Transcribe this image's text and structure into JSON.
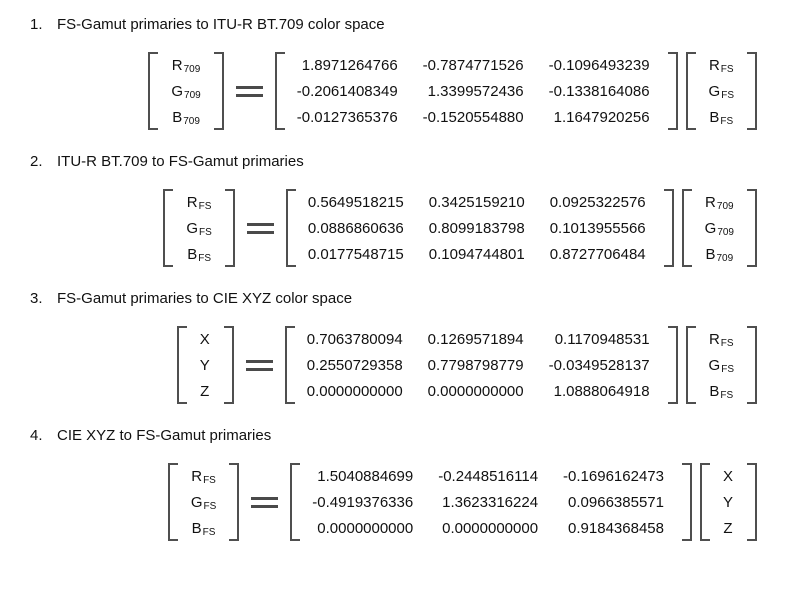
{
  "sections": [
    {
      "number": "1.",
      "title": "FS-Gamut primaries to ITU-R BT.709 color space",
      "lhs": [
        {
          "base": "R",
          "sub": "709"
        },
        {
          "base": "G",
          "sub": "709"
        },
        {
          "base": "B",
          "sub": "709"
        }
      ],
      "matrix": [
        [
          "1.8971264766",
          "-0.7874771526",
          "-0.1096493239"
        ],
        [
          "-0.2061408349",
          "1.3399572436",
          "-0.1338164086"
        ],
        [
          "-0.0127365376",
          "-0.1520554880",
          "1.1647920256"
        ]
      ],
      "rhs": [
        {
          "base": "R",
          "sub": "FS"
        },
        {
          "base": "G",
          "sub": "FS"
        },
        {
          "base": "B",
          "sub": "FS"
        }
      ]
    },
    {
      "number": "2.",
      "title": "ITU-R BT.709 to FS-Gamut primaries",
      "lhs": [
        {
          "base": "R",
          "sub": "FS"
        },
        {
          "base": "G",
          "sub": "FS"
        },
        {
          "base": "B",
          "sub": "FS"
        }
      ],
      "matrix": [
        [
          "0.5649518215",
          "0.3425159210",
          "0.0925322576"
        ],
        [
          "0.0886860636",
          "0.8099183798",
          "0.1013955566"
        ],
        [
          "0.0177548715",
          "0.1094744801",
          "0.8727706484"
        ]
      ],
      "rhs": [
        {
          "base": "R",
          "sub": "709"
        },
        {
          "base": "G",
          "sub": "709"
        },
        {
          "base": "B",
          "sub": "709"
        }
      ]
    },
    {
      "number": "3.",
      "title": "FS-Gamut primaries to CIE XYZ color space",
      "lhs": [
        {
          "base": "X",
          "sub": ""
        },
        {
          "base": "Y",
          "sub": ""
        },
        {
          "base": "Z",
          "sub": ""
        }
      ],
      "matrix": [
        [
          "0.7063780094",
          "0.1269571894",
          "0.1170948531"
        ],
        [
          "0.2550729358",
          "0.7798798779",
          "-0.0349528137"
        ],
        [
          "0.0000000000",
          "0.0000000000",
          "1.0888064918"
        ]
      ],
      "rhs": [
        {
          "base": "R",
          "sub": "FS"
        },
        {
          "base": "G",
          "sub": "FS"
        },
        {
          "base": "B",
          "sub": "FS"
        }
      ]
    },
    {
      "number": "4.",
      "title": "CIE XYZ to FS-Gamut primaries",
      "lhs": [
        {
          "base": "R",
          "sub": "FS"
        },
        {
          "base": "G",
          "sub": "FS"
        },
        {
          "base": "B",
          "sub": "FS"
        }
      ],
      "matrix": [
        [
          "1.5040884699",
          "-0.2448516114",
          "-0.1696162473"
        ],
        [
          "-0.4919376336",
          "1.3623316224",
          "0.0966385571"
        ],
        [
          "0.0000000000",
          "0.0000000000",
          "0.9184368458"
        ]
      ],
      "rhs": [
        {
          "base": "X",
          "sub": ""
        },
        {
          "base": "Y",
          "sub": ""
        },
        {
          "base": "Z",
          "sub": ""
        }
      ]
    }
  ],
  "colors": {
    "text": "#111111",
    "bracket": "#4f4f4f",
    "equals": "#4a4a4a",
    "background": "#ffffff"
  }
}
